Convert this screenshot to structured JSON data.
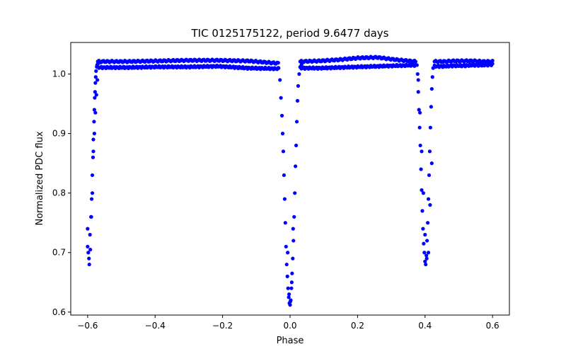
{
  "chart_data": {
    "type": "scatter",
    "title": "TIC 0125175122, period 9.6477 days",
    "xlabel": "Phase",
    "ylabel": "Normalized PDC flux",
    "xlim": [
      -0.65,
      0.65
    ],
    "ylim": [
      0.595,
      1.053
    ],
    "xticks": [
      -0.6,
      -0.4,
      -0.2,
      0.0,
      0.2,
      0.4,
      0.6
    ],
    "xtick_labels": [
      "−0.6",
      "−0.4",
      "−0.2",
      "0.0",
      "0.2",
      "0.4",
      "0.6"
    ],
    "yticks": [
      0.6,
      0.7,
      0.8,
      0.9,
      1.0
    ],
    "ytick_labels": [
      "0.6",
      "0.7",
      "0.8",
      "0.9",
      "1.0"
    ],
    "grid": false,
    "marker_color": "#0000ff",
    "series": [
      {
        "name": "PDC flux",
        "x": [
          -0.6,
          -0.598,
          -0.595,
          -0.593,
          -0.59,
          -0.588,
          -0.586,
          -0.584,
          -0.583,
          -0.581,
          -0.58,
          -0.579,
          -0.578,
          -0.577,
          -0.576,
          -0.575,
          -0.573,
          -0.572,
          -0.57,
          -0.568,
          -0.565,
          -0.562,
          -0.6,
          -0.596,
          -0.592,
          -0.589,
          -0.586,
          -0.583,
          -0.58,
          -0.577,
          -0.574,
          -0.571,
          -0.034,
          -0.03,
          -0.027,
          -0.024,
          -0.022,
          -0.02,
          -0.018,
          -0.016,
          -0.014,
          -0.012,
          -0.01,
          -0.008,
          -0.006,
          -0.004,
          -0.002,
          0.0,
          0.002,
          0.004,
          0.006,
          0.008,
          0.01,
          0.012,
          0.014,
          0.016,
          0.018,
          0.02,
          0.022,
          0.024,
          0.027,
          0.03,
          0.034,
          -0.003,
          0.001,
          0.005,
          -0.007,
          0.009,
          0.376,
          0.378,
          0.38,
          0.382,
          0.384,
          0.386,
          0.388,
          0.39,
          0.392,
          0.394,
          0.396,
          0.398,
          0.4,
          0.402,
          0.404,
          0.406,
          0.408,
          0.41,
          0.412,
          0.414,
          0.416,
          0.418,
          0.42,
          0.422,
          0.424,
          0.38,
          0.385,
          0.39,
          0.395,
          0.4,
          0.405,
          0.41,
          0.415,
          0.42
        ],
        "y": [
          0.74,
          0.7,
          0.68,
          0.73,
          0.76,
          0.79,
          0.83,
          0.86,
          0.89,
          0.92,
          0.94,
          0.96,
          0.97,
          0.985,
          0.995,
          1.005,
          1.012,
          1.015,
          1.017,
          1.018,
          1.019,
          1.02,
          0.71,
          0.69,
          0.705,
          0.76,
          0.8,
          0.87,
          0.9,
          0.935,
          0.965,
          0.99,
          1.01,
          0.99,
          0.96,
          0.93,
          0.9,
          0.87,
          0.83,
          0.79,
          0.75,
          0.71,
          0.68,
          0.66,
          0.64,
          0.625,
          0.615,
          0.612,
          0.62,
          0.64,
          0.665,
          0.69,
          0.72,
          0.76,
          0.8,
          0.845,
          0.88,
          0.92,
          0.955,
          0.98,
          1.0,
          1.012,
          1.016,
          0.63,
          0.618,
          0.65,
          0.7,
          0.74,
          1.015,
          1.0,
          0.97,
          0.94,
          0.91,
          0.88,
          0.84,
          0.805,
          0.77,
          0.74,
          0.715,
          0.7,
          0.685,
          0.68,
          0.695,
          0.72,
          0.75,
          0.79,
          0.83,
          0.87,
          0.91,
          0.945,
          0.975,
          0.995,
          1.01,
          0.99,
          0.935,
          0.87,
          0.8,
          0.73,
          0.69,
          0.7,
          0.78,
          0.85
        ]
      }
    ],
    "baseline_bands": [
      {
        "x_start": -0.57,
        "x_end": -0.035,
        "upper": [
          1.021,
          1.021,
          1.022,
          1.023,
          1.023,
          1.022,
          1.018
        ],
        "lower": [
          1.011,
          1.011,
          1.012,
          1.012,
          1.013,
          1.01,
          1.009
        ]
      },
      {
        "x_start": 0.03,
        "x_end": 0.372,
        "upper": [
          1.021,
          1.022,
          1.024,
          1.027,
          1.028,
          1.024,
          1.021
        ],
        "lower": [
          1.01,
          1.01,
          1.011,
          1.012,
          1.013,
          1.014,
          1.015
        ]
      },
      {
        "x_start": 0.428,
        "x_end": 0.6,
        "upper": [
          1.021,
          1.021,
          1.022,
          1.022,
          1.022,
          1.021,
          1.021
        ],
        "lower": [
          1.013,
          1.013,
          1.014,
          1.014,
          1.015,
          1.015,
          1.016
        ]
      }
    ]
  }
}
